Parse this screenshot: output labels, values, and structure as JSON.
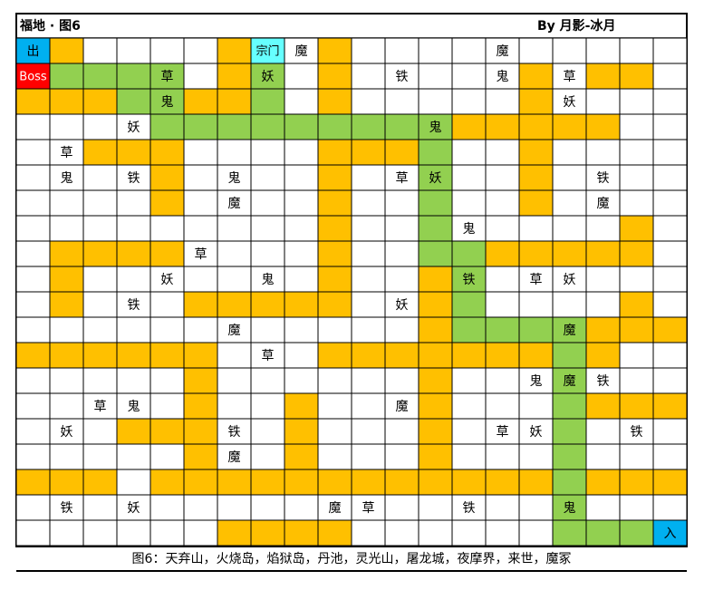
{
  "header": {
    "title": "福地 · 图6",
    "author": "By 月影-冰月"
  },
  "palette": {
    "O": "#ffc000",
    "G": "#92d050",
    "W": "#ffffff",
    "B": "#00b0f0",
    "R": "#ff0000",
    "C": "#66ffff"
  },
  "fills": [
    "BOWWWWOCWOWWWWWWWWWW",
    "RGGGGWOGWOWWWWWOWOOW",
    "OOOGGOOGWOWWWWWOWWWW",
    "WWWWGGGGGGGGGOOOOOWW",
    "WWOOOWWWWOOOGWWOWWWW",
    "WWWWOWWWWOWWGWWOWWWW",
    "WWWWOWWWWOWWGWWOWWWW",
    "WWWWWWWWWOWWGWWWWWOW",
    "WOOOOWWWWOWWGGOOOOOW",
    "WOWWWWWWWOWWOGWWWWWW",
    "WOWWWOOOOOWWOGWWWWOW",
    "WWWWWWWWWWWWOGGGGOOO",
    "OOOOOOWWWOOOOOOOGOWW",
    "WWWWWOWWWWWWOWWWGWWW",
    "WWWWWOWWOWWWOWWWGOOO",
    "WWWOOOWWOWWWOWWWGWWW",
    "WWWWWOWWOWWWOWWWGWWW",
    "OOOWOOOOOOOOOOOOGOOO",
    "WWWWWWWWWWWWWWWWGWWW",
    "WWWWWWOOOOWWWWWWGGGB"
  ],
  "labels": [
    [
      "出",
      null,
      null,
      null,
      null,
      null,
      null,
      "宗门",
      "魔",
      null,
      null,
      null,
      null,
      null,
      "魔",
      null,
      null,
      null,
      null,
      null
    ],
    [
      "Boss",
      null,
      null,
      null,
      "草",
      null,
      null,
      "妖",
      null,
      null,
      null,
      "铁",
      null,
      null,
      "鬼",
      null,
      "草",
      null,
      null,
      null
    ],
    [
      null,
      null,
      null,
      null,
      "鬼",
      null,
      null,
      null,
      null,
      null,
      null,
      null,
      null,
      null,
      null,
      null,
      "妖",
      null,
      null,
      null
    ],
    [
      null,
      null,
      null,
      "妖",
      null,
      null,
      null,
      null,
      null,
      null,
      null,
      null,
      "鬼",
      null,
      null,
      null,
      null,
      null,
      null,
      null
    ],
    [
      null,
      "草",
      null,
      null,
      null,
      null,
      null,
      null,
      null,
      null,
      null,
      null,
      null,
      null,
      null,
      null,
      null,
      null,
      null,
      null
    ],
    [
      null,
      "鬼",
      null,
      "铁",
      null,
      null,
      "鬼",
      null,
      null,
      null,
      null,
      "草",
      "妖",
      null,
      null,
      null,
      null,
      "铁",
      null,
      null
    ],
    [
      null,
      null,
      null,
      null,
      null,
      null,
      "魔",
      null,
      null,
      null,
      null,
      null,
      null,
      null,
      null,
      null,
      null,
      "魔",
      null,
      null
    ],
    [
      null,
      null,
      null,
      null,
      null,
      null,
      null,
      null,
      null,
      null,
      null,
      null,
      null,
      "鬼",
      null,
      null,
      null,
      null,
      null,
      null
    ],
    [
      null,
      null,
      null,
      null,
      null,
      "草",
      null,
      null,
      null,
      null,
      null,
      null,
      null,
      null,
      null,
      null,
      null,
      null,
      null,
      null
    ],
    [
      null,
      null,
      null,
      null,
      "妖",
      null,
      null,
      "鬼",
      null,
      null,
      null,
      null,
      null,
      "铁",
      null,
      "草",
      "妖",
      null,
      null,
      null
    ],
    [
      null,
      null,
      null,
      "铁",
      null,
      null,
      null,
      null,
      null,
      null,
      null,
      "妖",
      null,
      null,
      null,
      null,
      null,
      null,
      null,
      null
    ],
    [
      null,
      null,
      null,
      null,
      null,
      null,
      "魔",
      null,
      null,
      null,
      null,
      null,
      null,
      null,
      null,
      null,
      "魔",
      null,
      null,
      null
    ],
    [
      null,
      null,
      null,
      null,
      null,
      null,
      null,
      "草",
      null,
      null,
      null,
      null,
      null,
      null,
      null,
      null,
      null,
      null,
      null,
      null
    ],
    [
      null,
      null,
      null,
      null,
      null,
      null,
      null,
      null,
      null,
      null,
      null,
      null,
      null,
      null,
      null,
      "鬼",
      "魔",
      "铁",
      null,
      null
    ],
    [
      null,
      null,
      "草",
      "鬼",
      null,
      null,
      null,
      null,
      null,
      null,
      null,
      "魔",
      null,
      null,
      null,
      null,
      null,
      null,
      null,
      null
    ],
    [
      null,
      "妖",
      null,
      null,
      null,
      null,
      "铁",
      null,
      null,
      null,
      null,
      null,
      null,
      null,
      "草",
      "妖",
      null,
      null,
      "铁",
      null
    ],
    [
      null,
      null,
      null,
      null,
      null,
      null,
      "魔",
      null,
      null,
      null,
      null,
      null,
      null,
      null,
      null,
      null,
      null,
      null,
      null,
      null
    ],
    [
      null,
      null,
      null,
      null,
      null,
      null,
      null,
      null,
      null,
      null,
      null,
      null,
      null,
      null,
      null,
      null,
      null,
      null,
      null,
      null
    ],
    [
      null,
      "铁",
      null,
      "妖",
      null,
      null,
      null,
      null,
      null,
      "魔",
      "草",
      null,
      null,
      "铁",
      null,
      null,
      "鬼",
      null,
      null,
      null
    ],
    [
      null,
      null,
      null,
      null,
      null,
      null,
      null,
      null,
      null,
      null,
      null,
      null,
      null,
      null,
      null,
      null,
      null,
      null,
      null,
      "入"
    ]
  ],
  "caption": "图6：天弃山，火烧岛，焰狱岛，丹池，灵光山，屠龙城，夜摩界，来世，魔冢"
}
